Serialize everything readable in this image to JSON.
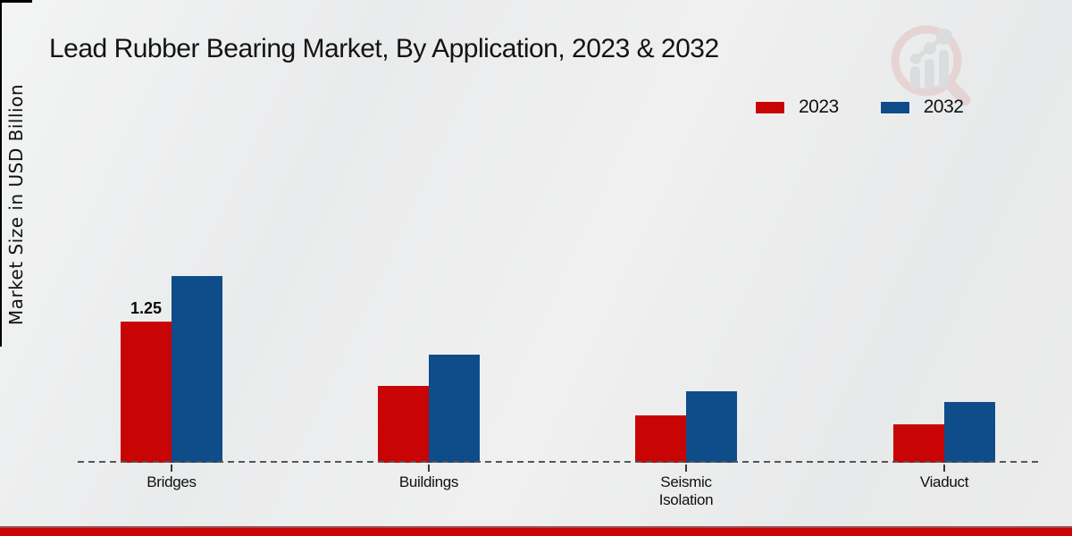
{
  "title": "Lead Rubber Bearing Market, By Application, 2023 & 2032",
  "y_axis_label": "Market Size in USD Billion",
  "legend": [
    {
      "label": "2023",
      "color": "#c80404"
    },
    {
      "label": "2032",
      "color": "#0f4c8a"
    }
  ],
  "annotation": {
    "text": "1.25"
  },
  "logo": {
    "name": "market-research-watermark-logo"
  },
  "colors": {
    "bar_2023": "#c80404",
    "bar_2032": "#0f4c8a",
    "footer_accent": "#c90404",
    "baseline": "#565656",
    "background": "#ebecec"
  },
  "chart_data": {
    "type": "bar",
    "categories": [
      "Bridges",
      "Buildings",
      "Seismic Isolation",
      "Viaduct"
    ],
    "series": [
      {
        "name": "2023",
        "color": "#c80404",
        "values": [
          1.25,
          0.68,
          0.42,
          0.34
        ]
      },
      {
        "name": "2032",
        "color": "#0f4c8a",
        "values": [
          1.65,
          0.96,
          0.63,
          0.54
        ]
      }
    ],
    "title": "Lead Rubber Bearing Market, By Application, 2023 & 2032",
    "xlabel": "",
    "ylabel": "Market Size in USD Billion",
    "ylim": [
      0,
      1.9
    ],
    "grid": false,
    "axis_line": "dashed",
    "legend_position": "top-right",
    "data_labels": [
      {
        "series": "2023",
        "category": "Bridges",
        "value": "1.25"
      }
    ]
  }
}
